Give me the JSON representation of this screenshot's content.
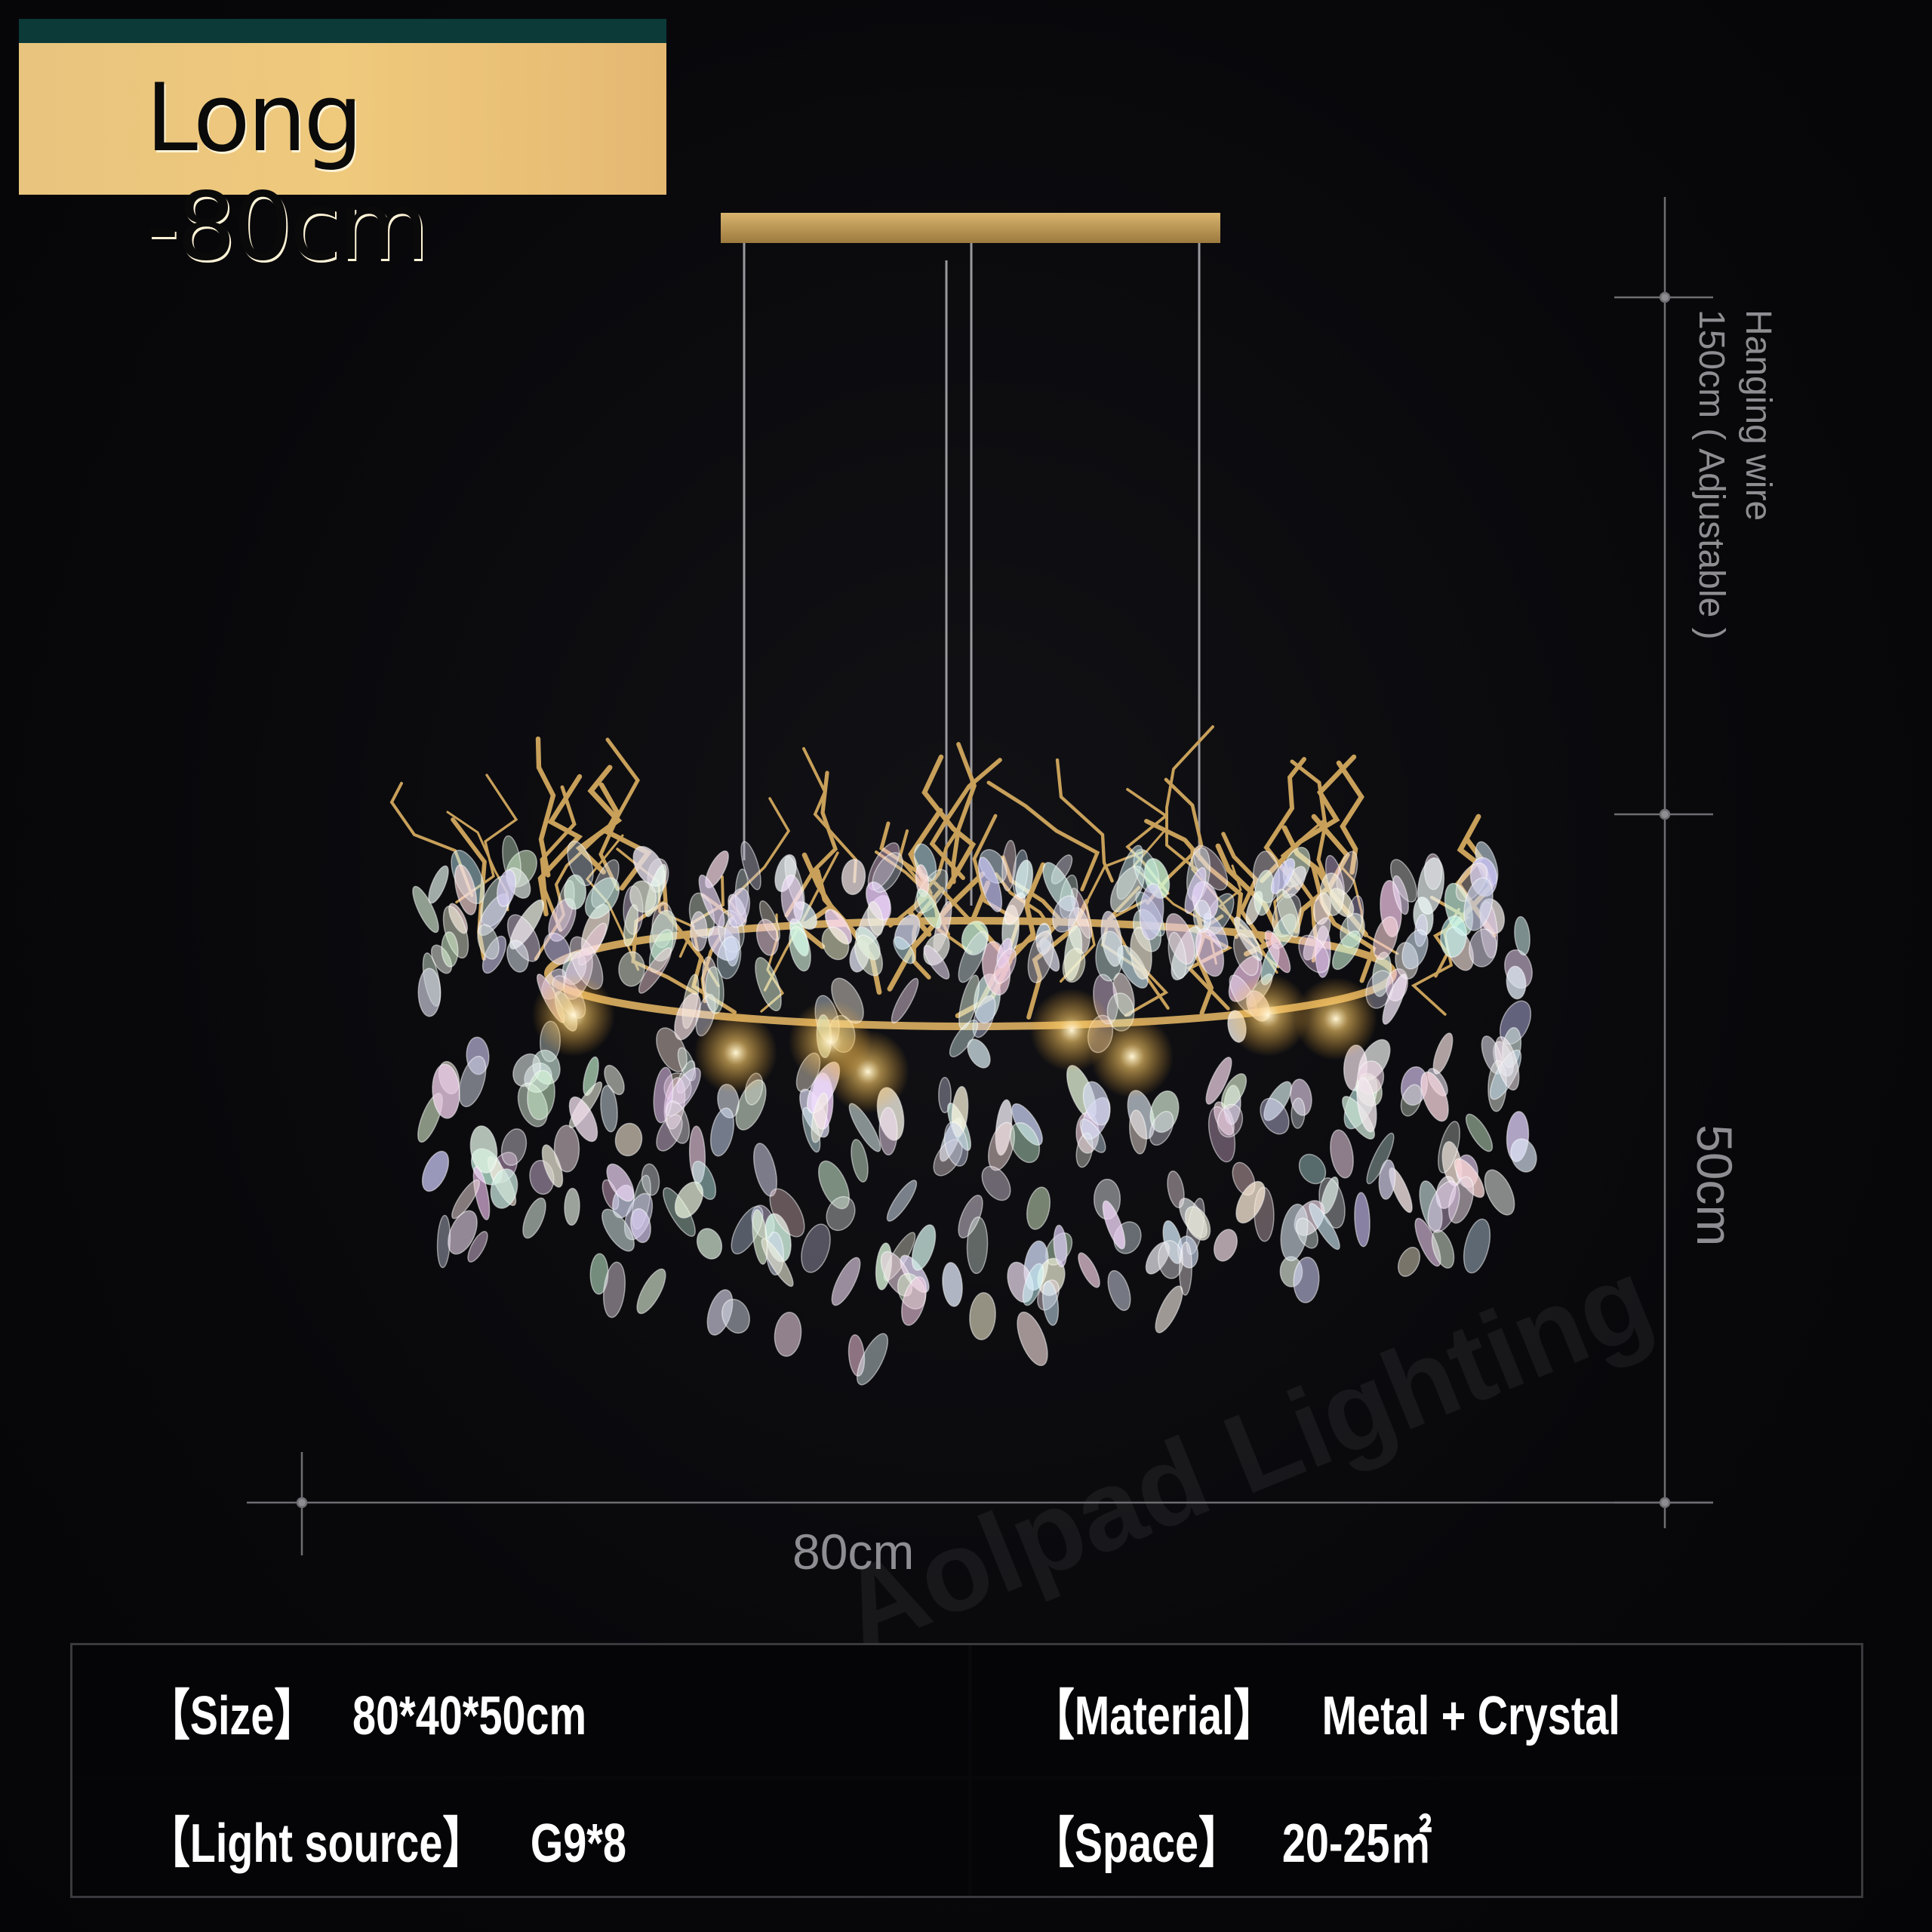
{
  "header": {
    "title": "Long -80cm"
  },
  "dimensions": {
    "width_label": "80cm",
    "height_label": "50cm",
    "wire_label_line1": "Hanging wire",
    "wire_label_line2": "150cm ( Adjustable )"
  },
  "watermark": "Aolpad Lighting",
  "specs": [
    {
      "label": "【Size】",
      "value": "80*40*50cm"
    },
    {
      "label": "【Material】",
      "value": "Metal + Crystal"
    },
    {
      "label": "【Light source】",
      "value": "G9*8"
    },
    {
      "label": "【Space】",
      "value": "20-25㎡"
    }
  ],
  "colors": {
    "gold": "#e8c47e",
    "teal": "#0b3a38",
    "background": "#07070a",
    "dimension_line": "#8d8d92"
  }
}
